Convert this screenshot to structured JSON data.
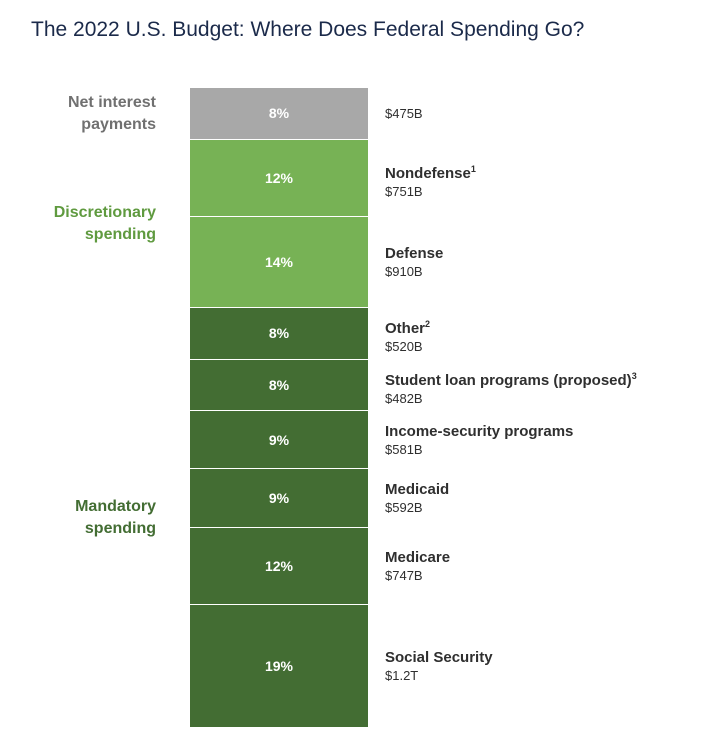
{
  "title": "The 2022 U.S. Budget: Where Does Federal Spending Go?",
  "colors": {
    "net_interest": "#a8a8a8",
    "discretionary": "#77b255",
    "mandatory": "#436d33",
    "discretionary_text": "#5f9a3f",
    "mandatory_text": "#436d33",
    "net_interest_text": "#707070"
  },
  "chart_data": {
    "type": "bar",
    "stacked": true,
    "groups": [
      {
        "name": "Net interest payments",
        "lines": [
          "Net interest",
          "payments"
        ],
        "color": "net_interest_text",
        "items": [
          0
        ]
      },
      {
        "name": "Discretionary spending",
        "lines": [
          "Discretionary",
          "spending"
        ],
        "color": "discretionary_text",
        "items": [
          1,
          2
        ]
      },
      {
        "name": "Mandatory spending",
        "lines": [
          "Mandatory",
          "spending"
        ],
        "color": "mandatory_text",
        "items": [
          3,
          4,
          5,
          6,
          7,
          8
        ]
      }
    ],
    "segments": [
      {
        "name": "",
        "footnote": "",
        "value": "$475B",
        "percent": 8,
        "pct_label": "8%",
        "group": "net_interest"
      },
      {
        "name": "Nondefense",
        "footnote": "1",
        "value": "$751B",
        "percent": 12,
        "pct_label": "12%",
        "group": "discretionary"
      },
      {
        "name": "Defense",
        "footnote": "",
        "value": "$910B",
        "percent": 14,
        "pct_label": "14%",
        "group": "discretionary"
      },
      {
        "name": "Other",
        "footnote": "2",
        "value": "$520B",
        "percent": 8,
        "pct_label": "8%",
        "group": "mandatory"
      },
      {
        "name": "Student loan programs (proposed)",
        "footnote": "3",
        "value": "$482B",
        "percent": 8,
        "pct_label": "8%",
        "group": "mandatory"
      },
      {
        "name": "Income-security programs",
        "footnote": "",
        "value": "$581B",
        "percent": 9,
        "pct_label": "9%",
        "group": "mandatory"
      },
      {
        "name": "Medicaid",
        "footnote": "",
        "value": "$592B",
        "percent": 9,
        "pct_label": "9%",
        "group": "mandatory"
      },
      {
        "name": "Medicare",
        "footnote": "",
        "value": "$747B",
        "percent": 12,
        "pct_label": "12%",
        "group": "mandatory"
      },
      {
        "name": "Social Security",
        "footnote": "",
        "value": "$1.2T",
        "percent": 19,
        "pct_label": "19%",
        "group": "mandatory"
      }
    ]
  }
}
